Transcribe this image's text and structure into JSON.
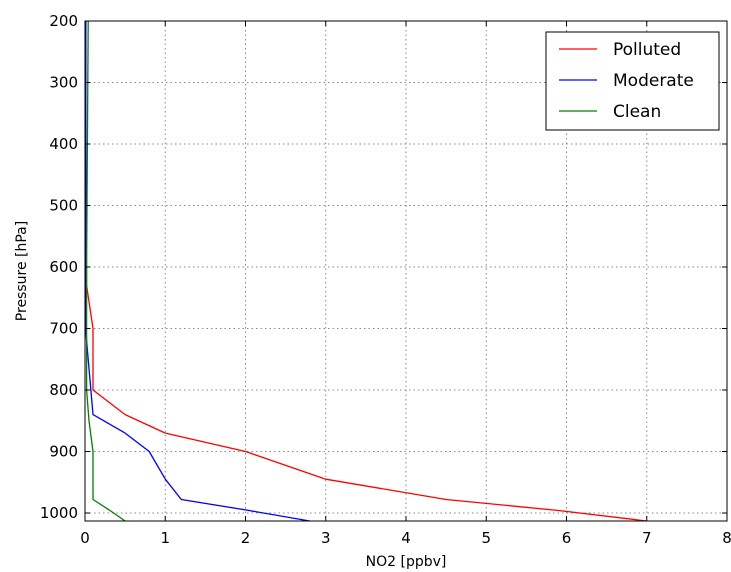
{
  "chart_data": {
    "type": "line",
    "title": "",
    "xlabel": "NO2 [ppbv]",
    "ylabel": "Pressure [hPa]",
    "xlim": [
      0,
      8
    ],
    "ylim": [
      200,
      1013
    ],
    "y_inverted": true,
    "grid": true,
    "x_ticks": [
      "0",
      "1",
      "2",
      "3",
      "4",
      "5",
      "6",
      "7",
      "8"
    ],
    "y_ticks": [
      "200",
      "300",
      "400",
      "500",
      "600",
      "700",
      "800",
      "900",
      "1000"
    ],
    "legend": {
      "position": "top-right"
    },
    "series": [
      {
        "name": "Polluted",
        "color": "#ff0000",
        "x": [
          0.01,
          0.01,
          0.02,
          0.1,
          0.1,
          0.1,
          0.5,
          1.0,
          2.0,
          3.0,
          4.5,
          5.9,
          7.0
        ],
        "y": [
          200,
          400,
          630,
          700,
          750,
          800,
          840,
          870,
          900,
          945,
          978,
          996,
          1013
        ]
      },
      {
        "name": "Moderate",
        "color": "#0000ff",
        "x": [
          0.01,
          0.01,
          0.01,
          0.02,
          0.1,
          0.5,
          0.8,
          1.0,
          1.2,
          2.0,
          2.8
        ],
        "y": [
          200,
          500,
          700,
          720,
          840,
          870,
          900,
          945,
          978,
          995,
          1013
        ]
      },
      {
        "name": "Clean",
        "color": "#008000",
        "x": [
          0.04,
          0.03,
          0.02,
          0.02,
          0.05,
          0.1,
          0.1,
          0.3,
          0.5
        ],
        "y": [
          200,
          400,
          600,
          800,
          850,
          900,
          978,
          995,
          1013
        ]
      }
    ]
  }
}
